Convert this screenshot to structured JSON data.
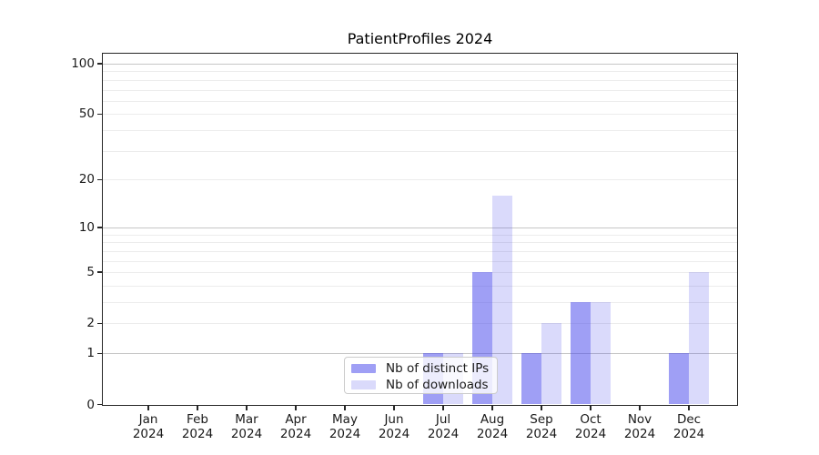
{
  "chart_data": {
    "type": "bar",
    "title": "PatientProfiles 2024",
    "categories": [
      "Jan",
      "Feb",
      "Mar",
      "Apr",
      "May",
      "Jun",
      "Jul",
      "Aug",
      "Sep",
      "Oct",
      "Nov",
      "Dec"
    ],
    "x_tick_year": "2024",
    "series": [
      {
        "name": "Nb of distinct IPs",
        "values": [
          0,
          0,
          0,
          0,
          0,
          0,
          1,
          5,
          1,
          3,
          0,
          1
        ],
        "color": "rgba(70,70,235,0.52)"
      },
      {
        "name": "Nb of downloads",
        "values": [
          0,
          0,
          0,
          0,
          0,
          0,
          1,
          16,
          2,
          3,
          0,
          5
        ],
        "color": "rgba(70,70,235,0.20)"
      }
    ],
    "y_scale": "log1p",
    "ylim": [
      0,
      115
    ],
    "y_ticks": [
      0,
      1,
      2,
      5,
      10,
      20,
      50,
      100
    ],
    "y_major_gridlines": [
      1,
      10,
      100
    ],
    "y_minor_gridlines": [
      2,
      3,
      4,
      5,
      6,
      7,
      8,
      9,
      20,
      30,
      40,
      50,
      60,
      70,
      80,
      90
    ],
    "grid": true,
    "legend_position": "lower center",
    "colors": {
      "grid_minor": "#ececec",
      "grid_major": "#c6c6c6",
      "axis": "#262626",
      "text": "#1a1a1a",
      "bar_dark": "rgba(70,70,235,0.52)",
      "bar_light": "rgba(70,70,235,0.20)"
    }
  }
}
